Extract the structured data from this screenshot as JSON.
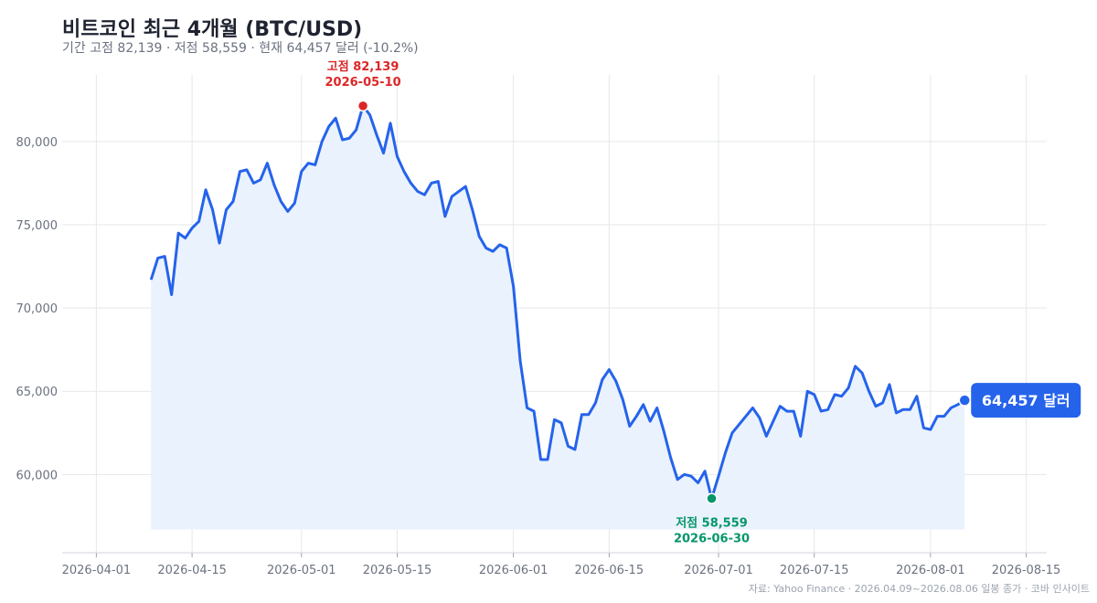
{
  "header": {
    "title": "비트코인 최근 4개월 (BTC/USD)",
    "subtitle": "기간 고점 82,139 · 저점 58,559 · 현재 64,457 달러 (-10.2%)"
  },
  "footer": {
    "source": "자료: Yahoo Finance · 2026.04.09~2026.08.06 일봉 종가 · 코바 인사이트"
  },
  "colors": {
    "line": "#2563eb",
    "area": "#eaf2fd",
    "high": "#dc2626",
    "low": "#059669",
    "grid": "#e5e7eb",
    "axis_text": "#6b7280"
  },
  "chart_data": {
    "type": "area",
    "xlim": [
      "2026-03-27",
      "2026-08-18"
    ],
    "ylim": [
      55300,
      84000
    ],
    "area_floor": 56700,
    "x_ticks": [
      "2026-04-01",
      "2026-04-15",
      "2026-05-01",
      "2026-05-15",
      "2026-06-01",
      "2026-06-15",
      "2026-07-01",
      "2026-07-15",
      "2026-08-01",
      "2026-08-15"
    ],
    "y_ticks": [
      60000,
      65000,
      70000,
      75000,
      80000
    ],
    "y_tick_labels": [
      "60,000",
      "65,000",
      "70,000",
      "75,000",
      "80,000"
    ],
    "grid": true,
    "start_date": "2026-04-09",
    "series": [
      {
        "values": [
          71700,
          73000,
          73100,
          70800,
          74500,
          74200,
          74800,
          75200,
          77100,
          75900,
          73900,
          75900,
          76400,
          78200,
          78300,
          77500,
          77700,
          78700,
          77400,
          76400,
          75800,
          76300,
          78200,
          78700,
          78600,
          80000,
          80900,
          81400,
          80100,
          80200,
          80700,
          82139,
          81600,
          80400,
          79300,
          81100,
          79100,
          78200,
          77500,
          77000,
          76800,
          77500,
          77600,
          75500,
          76700,
          77000,
          77300,
          75900,
          74300,
          73600,
          73400,
          73800,
          73600,
          71300,
          66800,
          64000,
          63800,
          60900,
          60900,
          63300,
          63100,
          61700,
          61500,
          63600,
          63600,
          64300,
          65700,
          66300,
          65600,
          64500,
          62900,
          63500,
          64200,
          63200,
          64000,
          62600,
          61000,
          59700,
          60000,
          59900,
          59500,
          60200,
          58559,
          59900,
          61300,
          62500,
          63000,
          63500,
          64000,
          63400,
          62300,
          63200,
          64100,
          63800,
          63800,
          62300,
          65000,
          64800,
          63800,
          63900,
          64800,
          64700,
          65200,
          66500,
          66100,
          65000,
          64100,
          64300,
          65400,
          63700,
          63900,
          63900,
          64700,
          62800,
          62700,
          63500,
          63500,
          64000,
          64200,
          64457
        ]
      }
    ],
    "high": {
      "value": 82139,
      "date": "2026-05-10",
      "label": "고점 82,139",
      "date_label": "2026-05-10"
    },
    "low": {
      "value": 58559,
      "date": "2026-06-30",
      "label": "저점 58,559",
      "date_label": "2026-06-30"
    },
    "current": {
      "value": 64457,
      "label": "64,457 달러"
    }
  }
}
